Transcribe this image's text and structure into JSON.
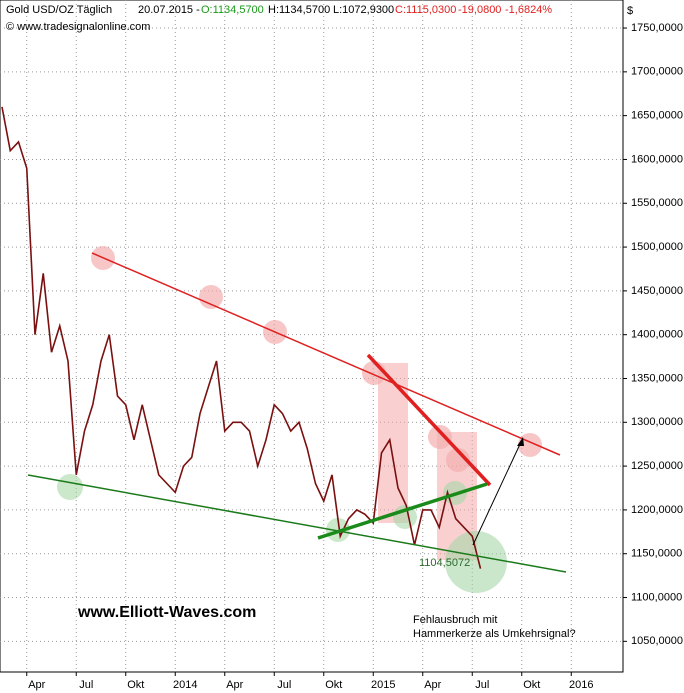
{
  "chart_data": {
    "type": "line",
    "header": {
      "instrument": "Gold USD/OZ Täglich",
      "date": "20.07.2015 -",
      "open": "O:1134,5700",
      "high": "H:1134,5700",
      "low": "L:1072,9300",
      "close": "C:1115,0300",
      "change": "-19,0800",
      "change_pct": "-1,6824%"
    },
    "source": "© www.tradesignalonline.com",
    "currency": "$",
    "annotations": {
      "watermark": "www.Elliott-Waves.com",
      "low_value": "1104,5072",
      "note_line1": "Fehlausbruch mit",
      "note_line2": "Hammerkerze als Umkehrsignal?"
    },
    "categories": [
      null,
      null,
      null,
      "Apr",
      null,
      null,
      null,
      null,
      null,
      "Jul",
      null,
      null,
      null,
      null,
      null,
      "Okt",
      null,
      null,
      null,
      null,
      null,
      "2014",
      null,
      null,
      null,
      null,
      null,
      "Apr",
      null,
      null,
      null,
      null,
      null,
      "Jul",
      null,
      null,
      null,
      null,
      null,
      "Okt",
      null,
      null,
      null,
      null,
      null,
      "2015",
      null,
      null,
      null,
      null,
      null,
      "Apr",
      null,
      null,
      null,
      null,
      null,
      "Jul",
      null,
      null,
      null,
      null,
      null,
      "Okt",
      null,
      null,
      null,
      null,
      null,
      "2016",
      null,
      null
    ],
    "values": [
      1660,
      1610,
      1620,
      1590,
      1400,
      1470,
      1380,
      1410,
      1370,
      1240,
      1290,
      1320,
      1370,
      1400,
      1330,
      1320,
      1280,
      1320,
      1280,
      1240,
      1230,
      1220,
      1250,
      1260,
      1310,
      1340,
      1370,
      1290,
      1300,
      1300,
      1290,
      1250,
      1280,
      1320,
      1310,
      1290,
      1300,
      1270,
      1230,
      1210,
      1240,
      1170,
      1190,
      1200,
      1195,
      1185,
      1265,
      1280,
      1225,
      1205,
      1160,
      1200,
      1200,
      1180,
      1220,
      1190,
      1180,
      1170,
      1133,
      null,
      null,
      null,
      null,
      null,
      null,
      null,
      null,
      null,
      null,
      null,
      null,
      null
    ],
    "color": "#7a1010",
    "ylim": [
      1015,
      1782
    ],
    "yticks": [
      {
        "value": 1050,
        "label": "1050,0000"
      },
      {
        "value": 1100,
        "label": "1100,0000"
      },
      {
        "value": 1150,
        "label": "1150,0000"
      },
      {
        "value": 1200,
        "label": "1200,0000"
      },
      {
        "value": 1250,
        "label": "1250,0000"
      },
      {
        "value": 1300,
        "label": "1300,0000"
      },
      {
        "value": 1350,
        "label": "1350,0000"
      },
      {
        "value": 1400,
        "label": "1400,0000"
      },
      {
        "value": 1450,
        "label": "1450,0000"
      },
      {
        "value": 1500,
        "label": "1500,0000"
      },
      {
        "value": 1550,
        "label": "1550,0000"
      },
      {
        "value": 1600,
        "label": "1600,0000"
      },
      {
        "value": 1650,
        "label": "1650,0000"
      },
      {
        "value": 1700,
        "label": "1700,0000"
      },
      {
        "value": 1750,
        "label": "1750,0000"
      }
    ],
    "grid": true
  }
}
